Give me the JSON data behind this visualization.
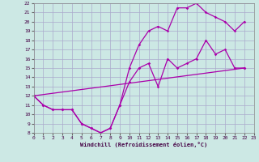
{
  "xlabel": "Windchill (Refroidissement éolien,°C)",
  "bg_color": "#cce8e4",
  "grid_color": "#aaaacc",
  "line_color": "#aa00aa",
  "xlim": [
    0,
    23
  ],
  "ylim": [
    8,
    22
  ],
  "xticks": [
    0,
    1,
    2,
    3,
    4,
    5,
    6,
    7,
    8,
    9,
    10,
    11,
    12,
    13,
    14,
    15,
    16,
    17,
    18,
    19,
    20,
    21,
    22,
    23
  ],
  "yticks": [
    8,
    9,
    10,
    11,
    12,
    13,
    14,
    15,
    16,
    17,
    18,
    19,
    20,
    21,
    22
  ],
  "line1_x": [
    0,
    1,
    2,
    3,
    4,
    5,
    6,
    7,
    8,
    9,
    10,
    11,
    12,
    13,
    14,
    15,
    16,
    17,
    18,
    19,
    20,
    21,
    22
  ],
  "line1_y": [
    12,
    11,
    10.5,
    10.5,
    10.5,
    9,
    8.5,
    8,
    8.5,
    11,
    13.5,
    15,
    15.5,
    13,
    16,
    15,
    15.5,
    16,
    18,
    16.5,
    17,
    15,
    15
  ],
  "line2_x": [
    0,
    1,
    2,
    3,
    4,
    5,
    6,
    7,
    8,
    9,
    10,
    11,
    12,
    13,
    14,
    15,
    16,
    17,
    18,
    19,
    20,
    21,
    22
  ],
  "line2_y": [
    12,
    11,
    10.5,
    10.5,
    10.5,
    9,
    8.5,
    8,
    8.5,
    11,
    15,
    17.5,
    19,
    19.5,
    19,
    21.5,
    21.5,
    22,
    21,
    20.5,
    20,
    19,
    20
  ],
  "line3_x": [
    0,
    22
  ],
  "line3_y": [
    12,
    15
  ]
}
